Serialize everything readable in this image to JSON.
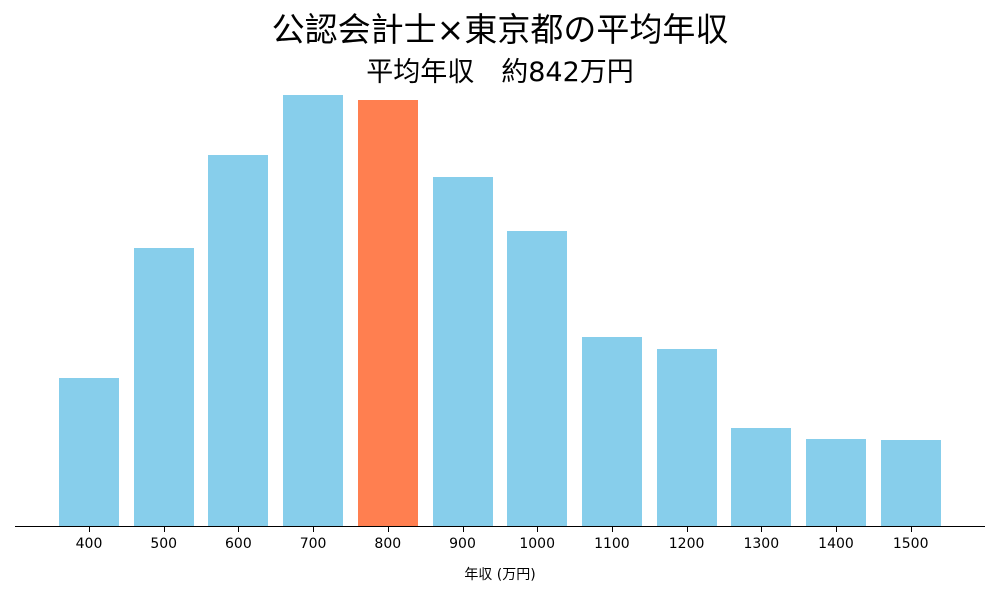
{
  "header": {
    "title": "公認会計士×東京都の平均年収",
    "subtitle": "平均年収　約842万円"
  },
  "colors": {
    "default_bar": "#87CEEB",
    "highlight_bar": "#FF7F50",
    "axis": "#000000"
  },
  "chart_data": {
    "type": "bar",
    "title": "公認会計士×東京都の平均年収",
    "subtitle": "平均年収　約842万円",
    "xlabel": "年収 (万円)",
    "ylabel": "",
    "categories": [
      "400",
      "500",
      "600",
      "700",
      "800",
      "900",
      "1000",
      "1100",
      "1200",
      "1300",
      "1400",
      "1500"
    ],
    "values": [
      149,
      279,
      372,
      432,
      427,
      350,
      296,
      190,
      178,
      99,
      88,
      87
    ],
    "value_note": "relative bar heights (no y-axis shown)",
    "highlight_category": "800",
    "grid": false,
    "legend": "none",
    "y_axis_visible": false
  }
}
